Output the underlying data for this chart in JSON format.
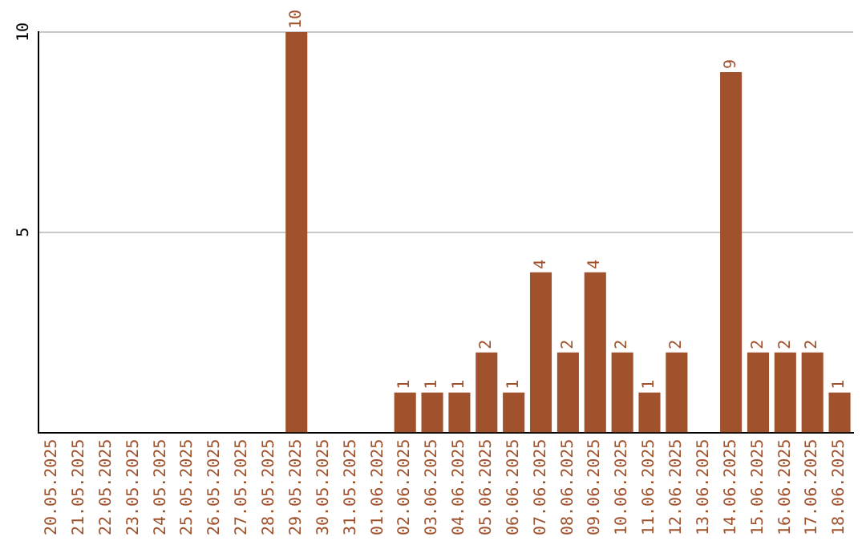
{
  "chart_data": {
    "type": "bar",
    "categories": [
      "20.05.2025",
      "21.05.2025",
      "22.05.2025",
      "23.05.2025",
      "24.05.2025",
      "25.05.2025",
      "26.05.2025",
      "27.05.2025",
      "28.05.2025",
      "29.05.2025",
      "30.05.2025",
      "31.05.2025",
      "01.06.2025",
      "02.06.2025",
      "03.06.2025",
      "04.06.2025",
      "05.06.2025",
      "06.06.2025",
      "07.06.2025",
      "08.06.2025",
      "09.06.2025",
      "10.06.2025",
      "11.06.2025",
      "12.06.2025",
      "13.06.2025",
      "14.06.2025",
      "15.06.2025",
      "16.06.2025",
      "17.06.2025",
      "18.06.2025"
    ],
    "values": [
      0,
      0,
      0,
      0,
      0,
      0,
      0,
      0,
      0,
      10,
      0,
      0,
      0,
      1,
      1,
      1,
      2,
      1,
      4,
      2,
      4,
      2,
      1,
      2,
      0,
      9,
      2,
      2,
      2,
      1
    ],
    "value_labels": [
      null,
      null,
      null,
      null,
      null,
      null,
      null,
      null,
      null,
      "10",
      null,
      null,
      null,
      "1",
      "1",
      "1",
      "2",
      "1",
      "4",
      "2",
      "4",
      "2",
      "1",
      "2",
      null,
      "9",
      "2",
      "2",
      "2",
      "1"
    ],
    "color": "#a0522d",
    "ylim": [
      0,
      10
    ],
    "yticks": [
      5,
      10
    ],
    "grid": "y",
    "legend": false
  }
}
